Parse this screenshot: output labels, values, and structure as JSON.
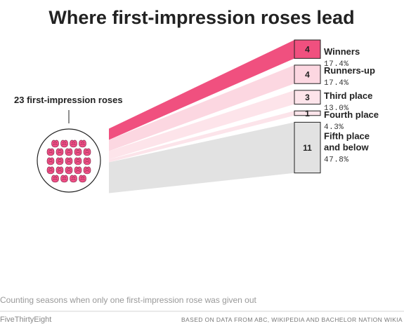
{
  "title": "Where first-impression roses lead",
  "source_label": "23 first-impression roses",
  "note": "Counting seasons when only one first-impression rose was given out",
  "footer": {
    "brand": "FiveThirtyEight",
    "source": "BASED ON DATA FROM ABC, WIKIPEDIA AND BACHELOR NATION WIKIA"
  },
  "colors": {
    "winners": "#f0507f",
    "runners_up": "#fcd7e1",
    "third": "#fde4ea",
    "fourth": "#fce4ea",
    "fifth": "#e2e2e2",
    "rose": "#ef4f86",
    "stroke": "#222222"
  },
  "chart_data": {
    "type": "sankey",
    "source": "23 first-impression roses",
    "total": 23,
    "categories": [
      {
        "label": "Winners",
        "count": 4,
        "percent": "17.4%"
      },
      {
        "label": "Runners-up",
        "count": 4,
        "percent": "17.4%"
      },
      {
        "label": "Third place",
        "count": 3,
        "percent": "13.0%"
      },
      {
        "label": "Fourth place",
        "count": 1,
        "percent": "4.3%"
      },
      {
        "label": "Fifth place\nand below",
        "count": 11,
        "percent": "47.8%"
      }
    ]
  }
}
